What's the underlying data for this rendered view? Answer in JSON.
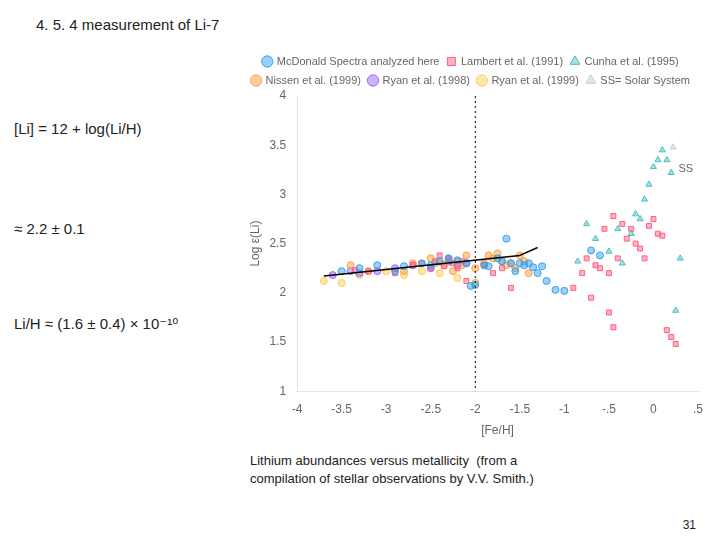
{
  "chart_data": {
    "type": "scatter",
    "title": "4. 5. 4 measurement of Li-7",
    "formulas": [
      "[Li] = 12 + log(Li/H)",
      "≈ 2.2 ± 0.1",
      "Li/H ≈ (1.6 ± 0.4) × 10⁻¹⁰"
    ],
    "caption": [
      "Lithium abundances versus metallicity  (from a",
      "compilation of stellar observations by V.V. Smith.)"
    ],
    "page_number": "31",
    "x_label": "[Fe/H]",
    "y_label": "Log ε(Li)",
    "xlim": [
      -4,
      0.5
    ],
    "ylim": [
      1,
      4
    ],
    "xticks": [
      -4,
      -3.5,
      -3,
      -2.5,
      -2,
      -1.5,
      -1,
      {
        "value": -0.5,
        "label": "-.5"
      },
      0,
      {
        "value": 0.5,
        "label": ".5"
      }
    ],
    "yticks": [
      1,
      1.5,
      2,
      2.5,
      3,
      3.5,
      4
    ],
    "grid": false,
    "legend": "top",
    "annotations": [
      {
        "text": "SS",
        "x": 0.28,
        "y": 3.26
      }
    ],
    "vertical_lines": [
      {
        "x": -2.0,
        "line_style": "dotted",
        "color": "#000000"
      }
    ],
    "series": [
      {
        "name": "McDonald Spectra analyzed here",
        "marker": "circle",
        "values": [
          [
            -3.5,
            2.22
          ],
          [
            -3.3,
            2.25
          ],
          [
            -3.1,
            2.28
          ],
          [
            -2.9,
            2.22
          ],
          [
            -2.8,
            2.27
          ],
          [
            -2.6,
            2.3
          ],
          [
            -2.5,
            2.28
          ],
          [
            -2.4,
            2.32
          ],
          [
            -2.3,
            2.35
          ],
          [
            -2.2,
            2.33
          ],
          [
            -2.1,
            2.3
          ],
          [
            -2.05,
            2.07
          ],
          [
            -2.0,
            2.08
          ],
          [
            -1.9,
            2.28
          ],
          [
            -1.85,
            2.27
          ],
          [
            -1.75,
            2.35
          ],
          [
            -1.7,
            2.32
          ],
          [
            -1.65,
            2.55
          ],
          [
            -1.6,
            2.3
          ],
          [
            -1.55,
            2.22
          ],
          [
            -1.5,
            2.3
          ],
          [
            -1.45,
            2.28
          ],
          [
            -1.4,
            2.3
          ],
          [
            -1.35,
            2.26
          ],
          [
            -1.3,
            2.2
          ],
          [
            -1.25,
            2.27
          ],
          [
            -1.2,
            2.12
          ],
          [
            -1.1,
            2.03
          ],
          [
            -1.0,
            2.02
          ],
          [
            -0.7,
            2.43
          ],
          [
            -0.6,
            2.38
          ]
        ]
      },
      {
        "name": "Lambert et al. (1991)",
        "marker": "square",
        "values": [
          [
            -3.35,
            2.23
          ],
          [
            -3.2,
            2.22
          ],
          [
            -2.9,
            2.2
          ],
          [
            -2.7,
            2.28
          ],
          [
            -2.6,
            2.3
          ],
          [
            -2.5,
            2.25
          ],
          [
            -2.45,
            2.32
          ],
          [
            -2.4,
            2.38
          ],
          [
            -2.35,
            2.27
          ],
          [
            -2.3,
            2.35
          ],
          [
            -2.25,
            2.3
          ],
          [
            -2.2,
            2.25
          ],
          [
            -2.15,
            2.32
          ],
          [
            -2.1,
            2.12
          ],
          [
            -1.9,
            2.28
          ],
          [
            -1.8,
            2.2
          ],
          [
            -1.7,
            2.25
          ],
          [
            -1.6,
            2.05
          ],
          [
            -0.9,
            2.05
          ],
          [
            -0.8,
            2.2
          ],
          [
            -0.75,
            2.35
          ],
          [
            -0.7,
            1.95
          ],
          [
            -0.65,
            2.28
          ],
          [
            -0.6,
            2.25
          ],
          [
            -0.55,
            2.65
          ],
          [
            -0.5,
            2.2
          ],
          [
            -0.45,
            2.78
          ],
          [
            -0.4,
            2.35
          ],
          [
            -0.35,
            2.7
          ],
          [
            -0.3,
            2.55
          ],
          [
            -0.25,
            2.65
          ],
          [
            -0.2,
            2.5
          ],
          [
            -0.15,
            2.45
          ],
          [
            -0.1,
            2.35
          ],
          [
            -0.05,
            2.68
          ],
          [
            0.0,
            2.75
          ],
          [
            0.05,
            2.6
          ],
          [
            0.1,
            2.58
          ],
          [
            0.15,
            1.62
          ],
          [
            0.2,
            1.55
          ],
          [
            0.25,
            1.48
          ],
          [
            -0.5,
            1.8
          ],
          [
            -0.45,
            1.65
          ]
        ]
      },
      {
        "name": "Cunha et al. (1995)",
        "marker": "triangle",
        "values": [
          [
            -0.85,
            2.32
          ],
          [
            -0.75,
            2.7
          ],
          [
            -0.65,
            2.55
          ],
          [
            -0.5,
            2.42
          ],
          [
            -0.4,
            2.65
          ],
          [
            -0.35,
            2.3
          ],
          [
            -0.25,
            2.6
          ],
          [
            -0.2,
            2.8
          ],
          [
            -0.15,
            2.75
          ],
          [
            -0.1,
            2.95
          ],
          [
            -0.05,
            3.1
          ],
          [
            0.0,
            3.28
          ],
          [
            0.05,
            3.35
          ],
          [
            0.1,
            3.45
          ],
          [
            0.15,
            3.35
          ],
          [
            0.2,
            3.22
          ],
          [
            0.25,
            1.82
          ],
          [
            0.3,
            2.35
          ]
        ]
      },
      {
        "name": "Nissen et al. (1999)",
        "marker": "circle",
        "values": [
          [
            -3.4,
            2.28
          ],
          [
            -3.2,
            2.22
          ],
          [
            -2.8,
            2.22
          ],
          [
            -2.7,
            2.3
          ],
          [
            -2.5,
            2.35
          ],
          [
            -2.45,
            2.3
          ],
          [
            -2.4,
            2.32
          ],
          [
            -2.35,
            2.28
          ],
          [
            -2.3,
            2.35
          ],
          [
            -2.25,
            2.22
          ],
          [
            -2.2,
            2.32
          ],
          [
            -2.15,
            2.28
          ],
          [
            -2.1,
            2.38
          ],
          [
            -2.0,
            2.25
          ],
          [
            -2.0,
            2.1
          ],
          [
            -1.9,
            2.3
          ],
          [
            -1.85,
            2.38
          ],
          [
            -1.8,
            2.35
          ],
          [
            -1.75,
            2.4
          ],
          [
            -1.7,
            2.32
          ],
          [
            -1.65,
            2.28
          ],
          [
            -1.6,
            2.3
          ],
          [
            -1.55,
            2.25
          ],
          [
            -1.5,
            2.38
          ],
          [
            -1.45,
            2.32
          ],
          [
            -1.4,
            2.2
          ]
        ]
      },
      {
        "name": "Ryan et al. (1998)",
        "marker": "circle",
        "values": [
          [
            -3.6,
            2.18
          ],
          [
            -3.4,
            2.22
          ],
          [
            -3.3,
            2.2
          ],
          [
            -3.1,
            2.22
          ],
          [
            -2.9,
            2.25
          ],
          [
            -2.7,
            2.28
          ],
          [
            -2.5,
            2.25
          ],
          [
            -2.3,
            2.32
          ],
          [
            -2.2,
            2.28
          ],
          [
            -2.1,
            2.3
          ]
        ]
      },
      {
        "name": "Ryan et al. (1999)",
        "marker": "circle",
        "values": [
          [
            -3.7,
            2.12
          ],
          [
            -3.5,
            2.1
          ],
          [
            -3.3,
            2.18
          ],
          [
            -3.0,
            2.22
          ],
          [
            -2.8,
            2.18
          ],
          [
            -2.6,
            2.22
          ],
          [
            -2.4,
            2.2
          ],
          [
            -2.2,
            2.15
          ]
        ]
      },
      {
        "name": "SS= Solar System",
        "marker": "triangle",
        "values": [
          [
            0.22,
            3.48
          ]
        ]
      },
      {
        "type": "line",
        "color": "#000000",
        "line_style": "solid",
        "values": [
          [
            -3.7,
            2.17
          ],
          [
            -1.5,
            2.38
          ]
        ]
      },
      {
        "type": "line",
        "color": "#000000",
        "line_style": "solid",
        "values": [
          [
            -1.5,
            2.38
          ],
          [
            -1.3,
            2.46
          ]
        ]
      }
    ]
  }
}
